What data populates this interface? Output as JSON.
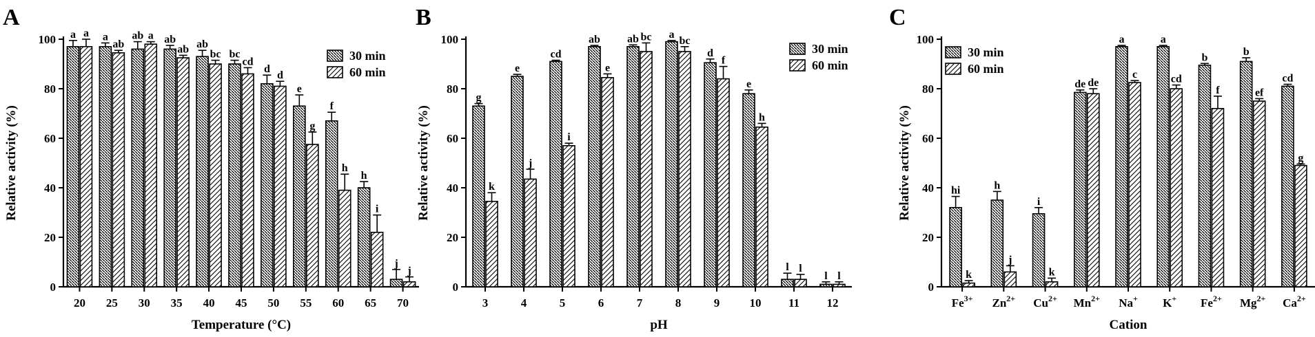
{
  "colors": {
    "ink": "#000000",
    "background": "#ffffff"
  },
  "legend": {
    "series": [
      "30 min",
      "60 min"
    ],
    "hatches": [
      "dense-diagonal-backslash",
      "sparse-diagonal-slash"
    ]
  },
  "chart_data": [
    {
      "panel": "A",
      "type": "bar",
      "xlabel": "Temperature (°C)",
      "ylabel": "Relative activity (%)",
      "ylim": [
        0,
        100
      ],
      "yticks": [
        0,
        20,
        40,
        60,
        80,
        100
      ],
      "legend_position": "top-right",
      "categories": [
        "20",
        "25",
        "30",
        "35",
        "40",
        "45",
        "50",
        "55",
        "60",
        "65",
        "70"
      ],
      "series": [
        {
          "name": "30 min",
          "values": [
            97,
            97,
            96,
            96,
            93,
            90,
            82,
            73,
            67,
            40,
            3
          ],
          "errors": [
            2.5,
            1.5,
            3,
            1.5,
            2.5,
            1.5,
            3.5,
            4.5,
            3.5,
            2.5,
            4
          ],
          "labels": [
            "a",
            "a",
            "ab",
            "ab",
            "ab",
            "bc",
            "d",
            "e",
            "f",
            "h",
            "j"
          ]
        },
        {
          "name": "60 min",
          "values": [
            97,
            94.5,
            98,
            92.5,
            90,
            86,
            81,
            57.5,
            39,
            22,
            2
          ],
          "errors": [
            3,
            1,
            1,
            1,
            1.5,
            2.5,
            2,
            5,
            6.5,
            7,
            2
          ],
          "labels": [
            "a",
            "ab",
            "a",
            "ab",
            "bc",
            "cd",
            "d",
            "g",
            "h",
            "i",
            "j"
          ]
        }
      ]
    },
    {
      "panel": "B",
      "type": "bar",
      "xlabel": "pH",
      "ylabel": "Relative activity (%)",
      "ylim": [
        0,
        100
      ],
      "yticks": [
        0,
        20,
        40,
        60,
        80,
        100
      ],
      "legend_position": "top-right",
      "categories": [
        "3",
        "4",
        "5",
        "6",
        "7",
        "8",
        "9",
        "10",
        "11",
        "12"
      ],
      "series": [
        {
          "name": "30 min",
          "values": [
            73,
            85,
            91,
            97,
            97,
            99,
            90.5,
            78,
            3,
            1
          ],
          "errors": [
            1,
            0.8,
            0.5,
            0.5,
            0.7,
            0.5,
            1.5,
            1.5,
            2.5,
            1
          ],
          "labels": [
            "g",
            "e",
            "cd",
            "ab",
            "ab",
            "a",
            "d",
            "e",
            "l",
            "l"
          ]
        },
        {
          "name": "60 min",
          "values": [
            34.5,
            43.5,
            57,
            84.5,
            95,
            95,
            84,
            64.5,
            3,
            1
          ],
          "errors": [
            3.5,
            4,
            1,
            1.5,
            3.5,
            2,
            5,
            1.5,
            2,
            1
          ],
          "labels": [
            "k",
            "j",
            "i",
            "e",
            "bc",
            "bc",
            "f",
            "h",
            "l",
            "l"
          ]
        }
      ]
    },
    {
      "panel": "C",
      "type": "bar",
      "xlabel": "Cation",
      "ylabel": "Relative activity (%)",
      "ylim": [
        0,
        100
      ],
      "yticks": [
        0,
        20,
        40,
        60,
        80,
        100
      ],
      "legend_position": "top-left",
      "categories": [
        "Fe",
        "Zn",
        "Cu",
        "Mn",
        "Na",
        "K",
        "Fe",
        "Mg",
        "Ca"
      ],
      "category_superscripts": [
        "3+",
        "2+",
        "2+",
        "2+",
        "+",
        "+",
        "2+",
        "2+",
        "2+"
      ],
      "series": [
        {
          "name": "30 min",
          "values": [
            32,
            35,
            29.5,
            78.5,
            97,
            97,
            89.5,
            91,
            81
          ],
          "errors": [
            4.5,
            3.5,
            2.5,
            1,
            0.5,
            0.5,
            0.7,
            1.5,
            0.8
          ],
          "labels": [
            "hi",
            "h",
            "i",
            "de",
            "a",
            "a",
            "b",
            "b",
            "cd"
          ]
        },
        {
          "name": "60 min",
          "values": [
            1.5,
            6,
            2,
            78,
            82.5,
            80,
            72,
            75,
            49
          ],
          "errors": [
            1,
            2.5,
            1.5,
            2,
            0.8,
            1.5,
            5,
            1,
            0.6
          ],
          "labels": [
            "k",
            "j",
            "k",
            "de",
            "c",
            "cd",
            "f",
            "ef",
            "g"
          ]
        }
      ]
    }
  ]
}
